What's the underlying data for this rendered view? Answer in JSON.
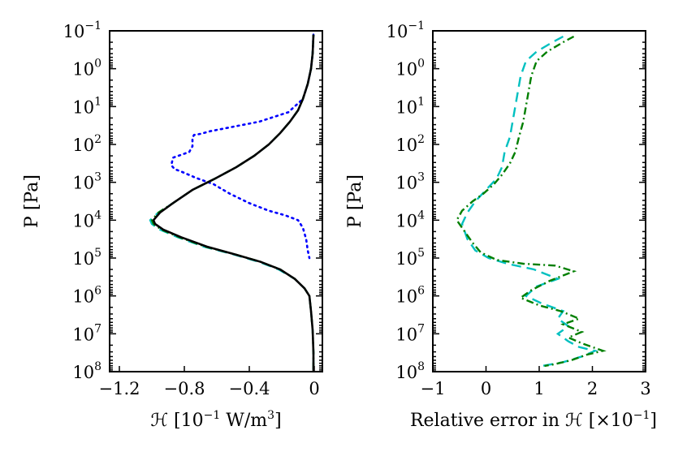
{
  "chart_data": [
    {
      "type": "line",
      "panel": "left",
      "title": "",
      "xlabel": "ℋ [10⁻¹ W/m³]",
      "xlabel_prefix": "ℋ [10",
      "xlabel_exp1": "−1",
      "xlabel_mid": " W/m",
      "xlabel_exp2": "3",
      "xlabel_suffix": "]",
      "ylabel": "P [Pa]",
      "yscale": "log",
      "y_inverted": true,
      "xlim": [
        -1.26,
        0.05
      ],
      "ylim_log10": [
        -1,
        8
      ],
      "x_ticks": [
        -1.2,
        -0.8,
        -0.4,
        0
      ],
      "x_tick_labels": [
        "−1.2",
        "−0.8",
        "−0.4",
        "0"
      ],
      "y_tick_exponents": [
        -1,
        0,
        1,
        2,
        3,
        4,
        5,
        6,
        7,
        8
      ],
      "y_tick_base": "10",
      "y_tick_exp_labels": [
        "−1",
        "0",
        "1",
        "2",
        "3",
        "4",
        "5",
        "6",
        "7",
        "8"
      ],
      "series": [
        {
          "name": "dotted",
          "color": "#0000ff",
          "style": "dotted",
          "points": [
            [
              -0.005,
              -0.9
            ],
            [
              -0.01,
              -0.4
            ],
            [
              -0.02,
              0.0
            ],
            [
              -0.04,
              0.4
            ],
            [
              -0.07,
              0.8
            ],
            [
              -0.16,
              1.15
            ],
            [
              -0.34,
              1.4
            ],
            [
              -0.52,
              1.55
            ],
            [
              -0.64,
              1.65
            ],
            [
              -0.7,
              1.72
            ],
            [
              -0.74,
              1.75
            ],
            [
              -0.75,
              1.82
            ],
            [
              -0.75,
              2.05
            ],
            [
              -0.77,
              2.2
            ],
            [
              -0.87,
              2.35
            ],
            [
              -0.88,
              2.55
            ],
            [
              -0.86,
              2.65
            ],
            [
              -0.8,
              2.75
            ],
            [
              -0.73,
              2.88
            ],
            [
              -0.62,
              3.05
            ],
            [
              -0.52,
              3.3
            ],
            [
              -0.4,
              3.55
            ],
            [
              -0.28,
              3.75
            ],
            [
              -0.18,
              3.87
            ],
            [
              -0.1,
              4.0
            ],
            [
              -0.07,
              4.2
            ],
            [
              -0.05,
              4.5
            ],
            [
              -0.04,
              4.8
            ],
            [
              -0.03,
              5.0
            ]
          ]
        },
        {
          "name": "dashed",
          "color": "#00c0c0",
          "style": "dashed",
          "points": [
            [
              -0.005,
              -0.9
            ],
            [
              -0.01,
              -0.4
            ],
            [
              -0.02,
              0.0
            ],
            [
              -0.04,
              0.4
            ],
            [
              -0.07,
              0.8
            ],
            [
              -0.1,
              1.1
            ],
            [
              -0.15,
              1.4
            ],
            [
              -0.21,
              1.7
            ],
            [
              -0.28,
              2.0
            ],
            [
              -0.37,
              2.3
            ],
            [
              -0.48,
              2.6
            ],
            [
              -0.61,
              2.9
            ],
            [
              -0.75,
              3.2
            ],
            [
              -0.87,
              3.55
            ],
            [
              -0.96,
              3.8
            ],
            [
              -1.01,
              4.0
            ],
            [
              -1.0,
              4.1
            ],
            [
              -0.95,
              4.25
            ],
            [
              -0.84,
              4.45
            ],
            [
              -0.68,
              4.7
            ],
            [
              -0.5,
              4.9
            ],
            [
              -0.34,
              5.1
            ],
            [
              -0.22,
              5.3
            ],
            [
              -0.12,
              5.55
            ],
            [
              -0.06,
              5.8
            ],
            [
              -0.03,
              6.0
            ],
            [
              -0.02,
              6.4
            ],
            [
              -0.01,
              6.9
            ],
            [
              -0.005,
              7.5
            ],
            [
              -0.005,
              8.0
            ]
          ]
        },
        {
          "name": "dash-dot",
          "color": "#007f00",
          "style": "dashdot",
          "points": [
            [
              -0.005,
              -0.9
            ],
            [
              -0.01,
              -0.4
            ],
            [
              -0.02,
              0.0
            ],
            [
              -0.04,
              0.4
            ],
            [
              -0.07,
              0.8
            ],
            [
              -0.1,
              1.1
            ],
            [
              -0.15,
              1.4
            ],
            [
              -0.21,
              1.7
            ],
            [
              -0.28,
              2.0
            ],
            [
              -0.37,
              2.3
            ],
            [
              -0.48,
              2.6
            ],
            [
              -0.61,
              2.9
            ],
            [
              -0.75,
              3.2
            ],
            [
              -0.87,
              3.55
            ],
            [
              -0.96,
              3.8
            ],
            [
              -1.0,
              4.0
            ],
            [
              -0.99,
              4.1
            ],
            [
              -0.94,
              4.25
            ],
            [
              -0.83,
              4.45
            ],
            [
              -0.67,
              4.7
            ],
            [
              -0.49,
              4.9
            ],
            [
              -0.33,
              5.1
            ],
            [
              -0.21,
              5.3
            ],
            [
              -0.12,
              5.55
            ],
            [
              -0.06,
              5.8
            ],
            [
              -0.03,
              6.0
            ],
            [
              -0.02,
              6.4
            ],
            [
              -0.01,
              6.9
            ],
            [
              -0.005,
              7.5
            ],
            [
              -0.005,
              8.0
            ]
          ]
        },
        {
          "name": "solid",
          "color": "#000000",
          "style": "solid",
          "points": [
            [
              -0.005,
              -0.9
            ],
            [
              -0.01,
              -0.4
            ],
            [
              -0.02,
              0.0
            ],
            [
              -0.04,
              0.4
            ],
            [
              -0.07,
              0.8
            ],
            [
              -0.1,
              1.1
            ],
            [
              -0.15,
              1.4
            ],
            [
              -0.21,
              1.7
            ],
            [
              -0.28,
              2.0
            ],
            [
              -0.37,
              2.3
            ],
            [
              -0.48,
              2.6
            ],
            [
              -0.61,
              2.9
            ],
            [
              -0.75,
              3.2
            ],
            [
              -0.87,
              3.55
            ],
            [
              -0.95,
              3.8
            ],
            [
              -0.99,
              4.0
            ],
            [
              -0.98,
              4.1
            ],
            [
              -0.93,
              4.25
            ],
            [
              -0.82,
              4.45
            ],
            [
              -0.66,
              4.7
            ],
            [
              -0.49,
              4.9
            ],
            [
              -0.33,
              5.1
            ],
            [
              -0.21,
              5.3
            ],
            [
              -0.12,
              5.55
            ],
            [
              -0.06,
              5.8
            ],
            [
              -0.03,
              6.0
            ],
            [
              -0.02,
              6.4
            ],
            [
              -0.01,
              6.9
            ],
            [
              -0.005,
              7.5
            ],
            [
              -0.005,
              8.0
            ]
          ]
        }
      ]
    },
    {
      "type": "line",
      "panel": "right",
      "title": "",
      "xlabel": "Relative error in ℋ [×10⁻¹]",
      "xlabel_prefix": "Relative error in ℋ [×10",
      "xlabel_exp1": "−1",
      "xlabel_suffix": "]",
      "ylabel": "P [Pa]",
      "yscale": "log",
      "y_inverted": true,
      "xlim": [
        -1,
        3
      ],
      "ylim_log10": [
        -1,
        8
      ],
      "x_ticks": [
        -1,
        0,
        1,
        2,
        3
      ],
      "x_tick_labels": [
        "−1",
        "0",
        "1",
        "2",
        "3"
      ],
      "y_tick_exponents": [
        -1,
        0,
        1,
        2,
        3,
        4,
        5,
        6,
        7,
        8
      ],
      "y_tick_base": "10",
      "y_tick_exp_labels": [
        "−1",
        "0",
        "1",
        "2",
        "3",
        "4",
        "5",
        "6",
        "7",
        "8"
      ],
      "series": [
        {
          "name": "dashed",
          "color": "#00c0c0",
          "style": "dashed",
          "points": [
            [
              1.45,
              -0.85
            ],
            [
              1.25,
              -0.7
            ],
            [
              0.95,
              -0.45
            ],
            [
              0.75,
              -0.2
            ],
            [
              0.65,
              0.2
            ],
            [
              0.6,
              0.6
            ],
            [
              0.55,
              1.0
            ],
            [
              0.5,
              1.4
            ],
            [
              0.45,
              1.8
            ],
            [
              0.35,
              2.2
            ],
            [
              0.3,
              2.6
            ],
            [
              0.2,
              2.9
            ],
            [
              0.0,
              3.2
            ],
            [
              -0.2,
              3.5
            ],
            [
              -0.35,
              3.8
            ],
            [
              -0.45,
              4.1
            ],
            [
              -0.35,
              4.5
            ],
            [
              -0.2,
              4.8
            ],
            [
              0.05,
              5.0
            ],
            [
              0.4,
              5.15
            ],
            [
              0.9,
              5.3
            ],
            [
              1.35,
              5.55
            ],
            [
              0.95,
              5.75
            ],
            [
              0.75,
              6.0
            ],
            [
              1.05,
              6.2
            ],
            [
              1.45,
              6.4
            ],
            [
              1.35,
              6.6
            ],
            [
              1.55,
              6.8
            ],
            [
              1.35,
              7.0
            ],
            [
              1.55,
              7.2
            ],
            [
              1.75,
              7.35
            ],
            [
              2.05,
              7.45
            ],
            [
              1.8,
              7.6
            ],
            [
              1.45,
              7.75
            ],
            [
              1.05,
              7.85
            ]
          ]
        },
        {
          "name": "dash-dot",
          "color": "#007f00",
          "style": "dashdot",
          "points": [
            [
              1.65,
              -0.85
            ],
            [
              1.45,
              -0.7
            ],
            [
              1.15,
              -0.45
            ],
            [
              0.95,
              -0.2
            ],
            [
              0.85,
              0.2
            ],
            [
              0.8,
              0.6
            ],
            [
              0.75,
              1.0
            ],
            [
              0.7,
              1.4
            ],
            [
              0.62,
              1.8
            ],
            [
              0.55,
              2.2
            ],
            [
              0.45,
              2.5
            ],
            [
              0.3,
              2.8
            ],
            [
              0.15,
              3.05
            ],
            [
              -0.05,
              3.3
            ],
            [
              -0.25,
              3.5
            ],
            [
              -0.45,
              3.75
            ],
            [
              -0.55,
              4.0
            ],
            [
              -0.4,
              4.3
            ],
            [
              -0.25,
              4.6
            ],
            [
              -0.1,
              4.85
            ],
            [
              0.2,
              5.05
            ],
            [
              0.7,
              5.15
            ],
            [
              1.3,
              5.2
            ],
            [
              1.65,
              5.35
            ],
            [
              1.2,
              5.6
            ],
            [
              0.85,
              5.85
            ],
            [
              0.65,
              6.05
            ],
            [
              1.0,
              6.25
            ],
            [
              1.4,
              6.4
            ],
            [
              1.75,
              6.6
            ],
            [
              1.45,
              6.75
            ],
            [
              1.8,
              6.95
            ],
            [
              1.55,
              7.1
            ],
            [
              1.8,
              7.25
            ],
            [
              2.2,
              7.45
            ],
            [
              1.9,
              7.55
            ],
            [
              1.6,
              7.7
            ],
            [
              1.3,
              7.8
            ],
            [
              1.1,
              7.85
            ]
          ]
        }
      ]
    }
  ]
}
